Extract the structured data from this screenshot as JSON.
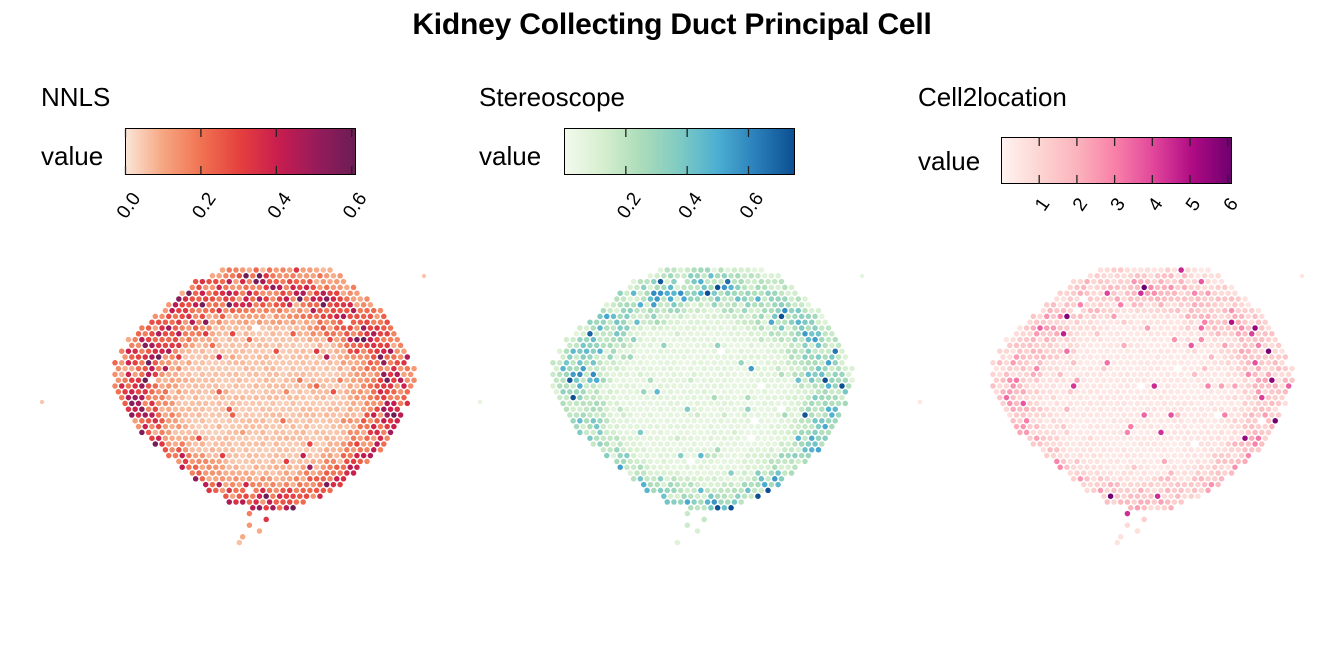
{
  "chart_data": {
    "type": "scatter",
    "title": "Kidney Collecting Duct Principal Cell",
    "panels": [
      {
        "name": "NNLS",
        "legend_title": "value",
        "colormap": [
          "#fbe6d8",
          "#f6a580",
          "#f07151",
          "#e53f3e",
          "#c81d4f",
          "#961b5b",
          "#6b1d54"
        ],
        "range": [
          0,
          0.61
        ],
        "ticks": [
          "0.0",
          "0.2",
          "0.4",
          "0.6"
        ],
        "tick_values": [
          0,
          0.2,
          0.4,
          0.6
        ],
        "background_level": 0.05,
        "ring_level": 0.3
      },
      {
        "name": "Stereoscope",
        "legend_title": "value",
        "colormap": [
          "#f3faed",
          "#d6efcf",
          "#abdcb9",
          "#7fcbc3",
          "#4caed2",
          "#2a7fba",
          "#0c4f92"
        ],
        "range": [
          0.0,
          0.75
        ],
        "ticks": [
          "0.2",
          "0.4",
          "0.6"
        ],
        "tick_values": [
          0.2,
          0.4,
          0.6
        ],
        "background_level": 0.06,
        "ring_level": 0.28
      },
      {
        "name": "Cell2location",
        "legend_title": "value",
        "colormap": [
          "#fff3f1",
          "#fcd5d2",
          "#fbb2bc",
          "#f87ea8",
          "#e0449a",
          "#ae0a83",
          "#6e006f"
        ],
        "range": [
          0.0,
          6.1
        ],
        "ticks": [
          "1",
          "2",
          "3",
          "4",
          "5",
          "6"
        ],
        "tick_values": [
          1,
          2,
          3,
          4,
          5,
          6
        ],
        "background_level": 0.4,
        "ring_level": 1.4
      }
    ],
    "spatial": {
      "description_units": "spot grid indices",
      "rows": 48,
      "row_ranges": [
        [
          16,
          32
        ],
        [
          14,
          33
        ],
        [
          12,
          34
        ],
        [
          11,
          35
        ],
        [
          10,
          36
        ],
        [
          9,
          37
        ],
        [
          8,
          38
        ],
        [
          7,
          39
        ],
        [
          6,
          40
        ],
        [
          5,
          40
        ],
        [
          4,
          41
        ],
        [
          3,
          41
        ],
        [
          2,
          42
        ],
        [
          2,
          42
        ],
        [
          1,
          43
        ],
        [
          1,
          43
        ],
        [
          0,
          43
        ],
        [
          0,
          44
        ],
        [
          0,
          44
        ],
        [
          0,
          44
        ],
        [
          0,
          44
        ],
        [
          0,
          43
        ],
        [
          1,
          43
        ],
        [
          1,
          43
        ],
        [
          2,
          42
        ],
        [
          2,
          42
        ],
        [
          3,
          42
        ],
        [
          3,
          41
        ],
        [
          4,
          41
        ],
        [
          5,
          40
        ],
        [
          6,
          40
        ],
        [
          7,
          39
        ],
        [
          8,
          38
        ],
        [
          9,
          37
        ],
        [
          10,
          36
        ],
        [
          11,
          35
        ],
        [
          12,
          34
        ],
        [
          13,
          33
        ],
        [
          14,
          32
        ],
        [
          16,
          30
        ],
        [
          17,
          28
        ],
        [
          20,
          26
        ],
        [
          20,
          20
        ],
        [
          22,
          22
        ],
        [
          20,
          20
        ],
        [
          21,
          21
        ],
        [
          19,
          19
        ],
        [
          18,
          18
        ]
      ],
      "seed": 7
    }
  }
}
